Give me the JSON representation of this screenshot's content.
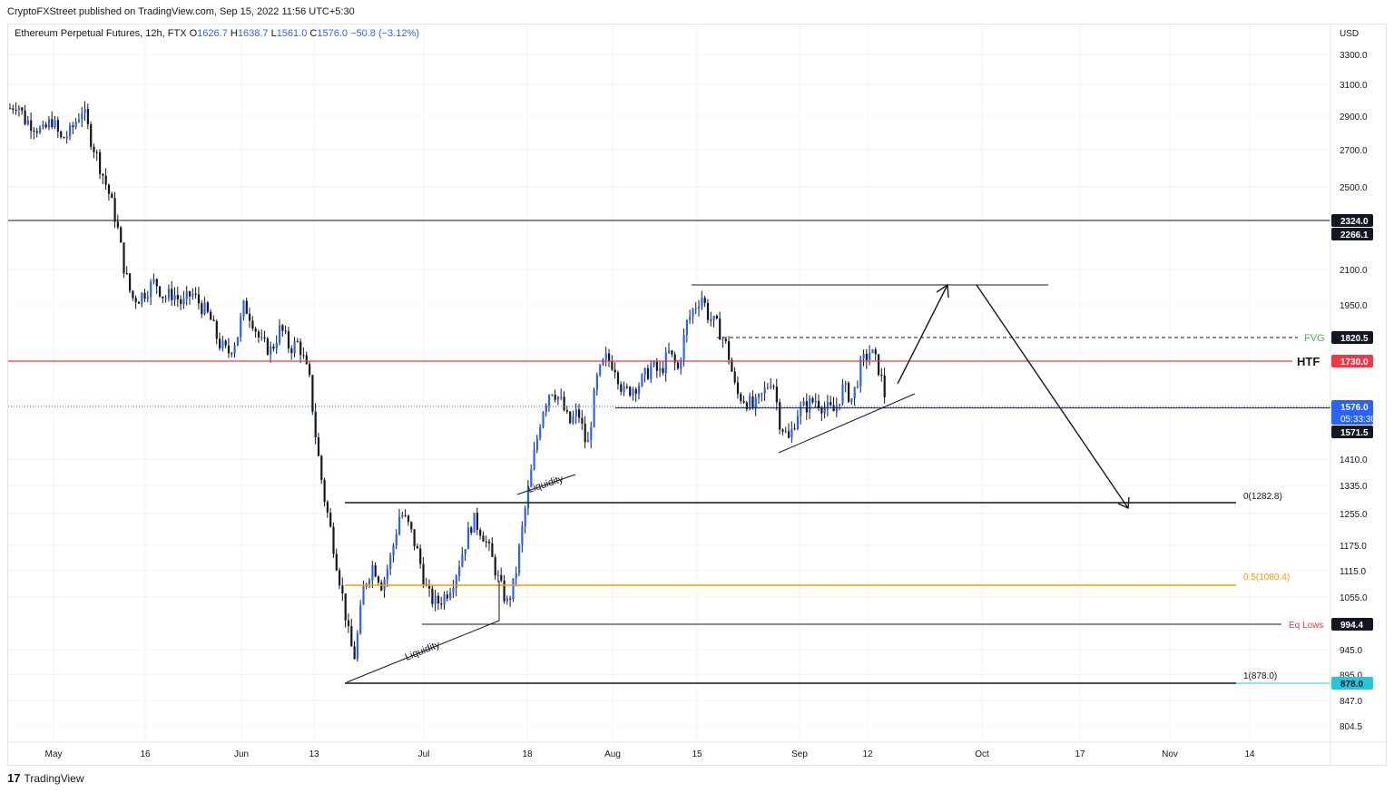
{
  "header": {
    "published": "CryptoFXStreet published on TradingView.com, Sep 15, 2022 11:56 UTC+5:30"
  },
  "symbol": {
    "name": "Ethereum Perpetual Futures, 12h, FTX",
    "open_label": "O",
    "open": "1626.7",
    "high_label": "H",
    "high": "1638.7",
    "low_label": "L",
    "low": "1561.0",
    "close_label": "C",
    "close": "1576.0",
    "change": "−50.8 (−3.12%)"
  },
  "footer": {
    "brand": "TradingView",
    "logo": "17"
  },
  "colors": {
    "candle_up": "#2962ff",
    "candle_down": "#2962ff",
    "htf": "#f23645",
    "fvg": "#4caf50",
    "fib_half": "#ff9800",
    "eq_lows": "#f23645",
    "last_price": "#2962ff",
    "fib_one": "#26c6da"
  },
  "chart_data": {
    "type": "candlestick",
    "currency_label": "USD",
    "y_ticks": [
      3300.0,
      3100.0,
      2900.0,
      2700.0,
      2500.0,
      2100.0,
      1950.0,
      1410.0,
      1335.0,
      1255.0,
      1175.0,
      1115.0,
      1055.0,
      945.0,
      895.0,
      847.0,
      804.5
    ],
    "x_ticks": [
      "May",
      "16",
      "Jun",
      "13",
      "Jul",
      "18",
      "Aug",
      "15",
      "Sep",
      "12",
      "Oct",
      "17",
      "Nov",
      "14"
    ],
    "price_badges": [
      {
        "value": "2324.0",
        "style": "dark"
      },
      {
        "value": "2266.1",
        "style": "dark"
      },
      {
        "value": "1820.5",
        "style": "dark"
      },
      {
        "value": "1730.0",
        "style": "red"
      },
      {
        "value": "1576.0",
        "style": "blue",
        "sub": "05:33:30"
      },
      {
        "value": "1571.5",
        "style": "dark"
      },
      {
        "value": "994.4",
        "style": "dark"
      },
      {
        "value": "878.0",
        "style": "cyan"
      }
    ],
    "levels": [
      {
        "value": 2324.0,
        "label": ""
      },
      {
        "value": 1820.5,
        "label": "FVG"
      },
      {
        "value": 1730.0,
        "label": "HTF"
      },
      {
        "value": 1571.5,
        "label": ""
      },
      {
        "value": 1282.8,
        "label": "0(1282.8)"
      },
      {
        "value": 1080.4,
        "label": "0.5(1080.4)"
      },
      {
        "value": 994.4,
        "label": "Eq Lows"
      },
      {
        "value": 878.0,
        "label": "1(878.0)"
      }
    ],
    "annotations": [
      "Liquidity",
      "Liquidity"
    ],
    "last_price": 1576.0,
    "range_high": 2019,
    "range_low": 878.0
  }
}
